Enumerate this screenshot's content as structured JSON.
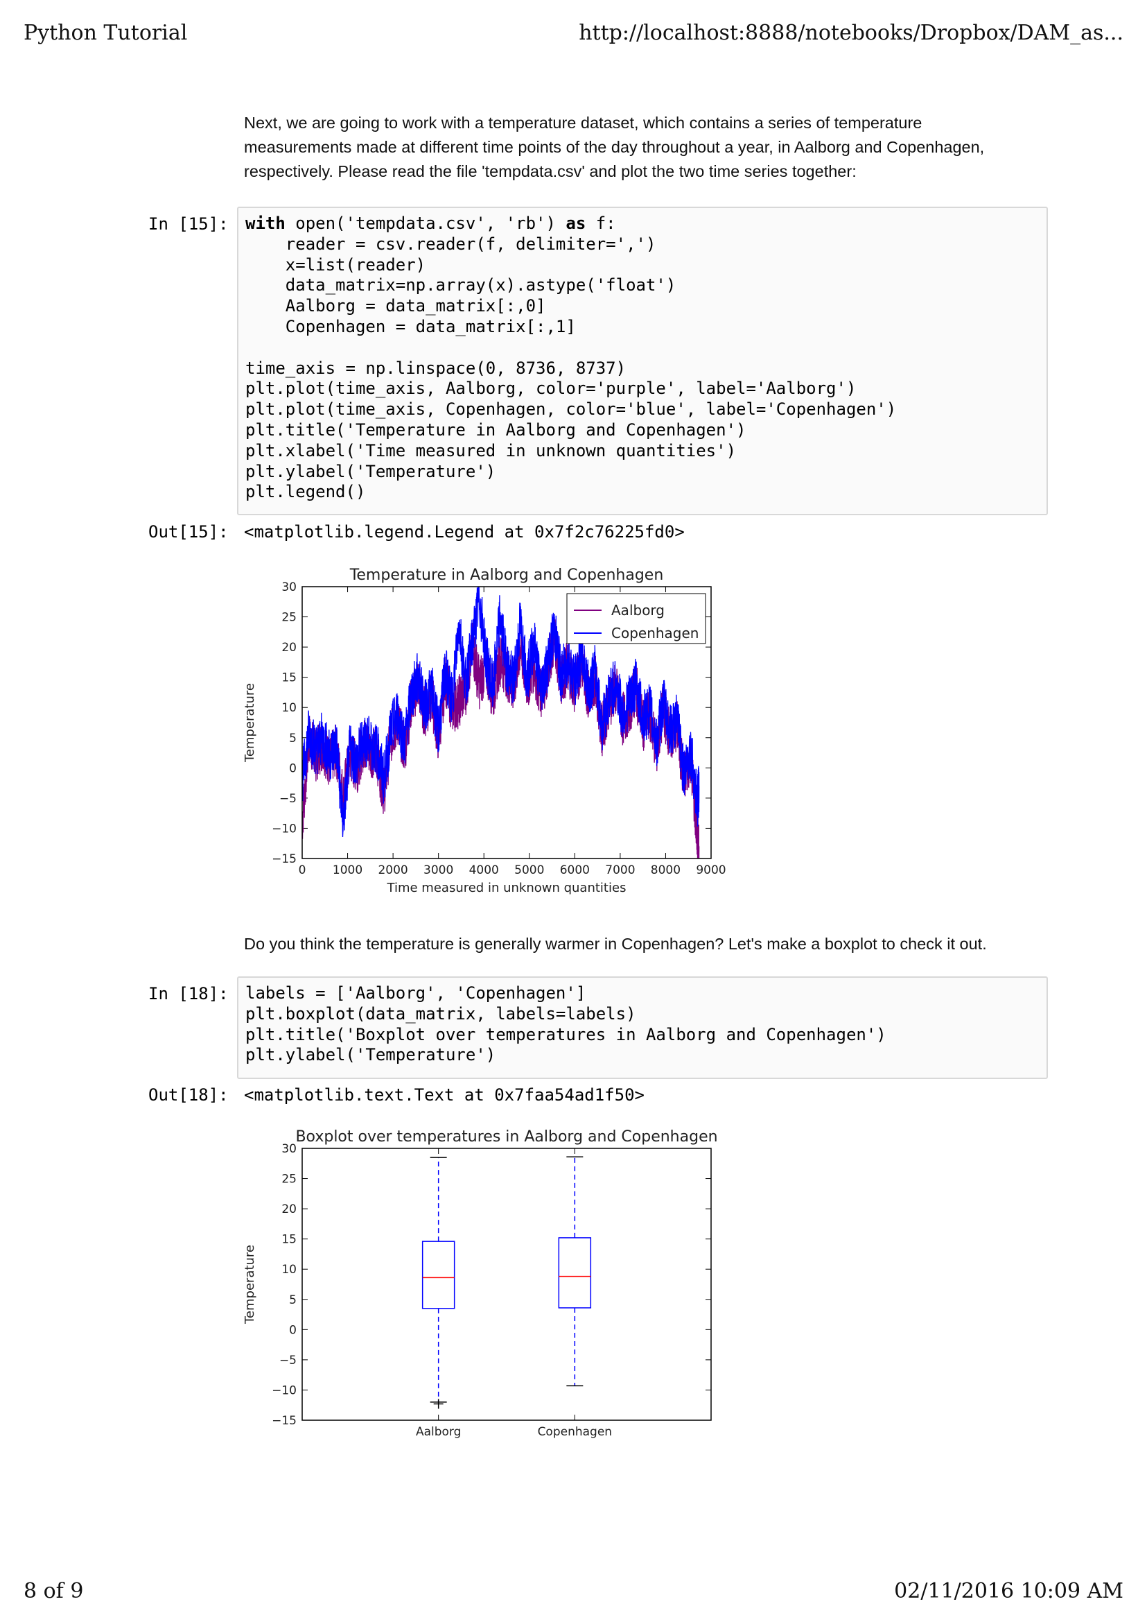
{
  "header": {
    "left": "Python Tutorial",
    "right": "http://localhost:8888/notebooks/Dropbox/DAM_as..."
  },
  "footer": {
    "left": "8 of 9",
    "right": "02/11/2016 10:09 AM"
  },
  "markdown1": [
    "Next, we are going to work with a temperature dataset, which contains a series of temperature",
    "measurements made at different time points of the day throughout a year, in Aalborg and Copenhagen,",
    "respectively. Please read the file 'tempdata.csv' and plot the two time series together:"
  ],
  "cell15": {
    "in_prompt": "In [15]:",
    "out_prompt": "Out[15]:",
    "output": "<matplotlib.legend.Legend at 0x7f2c76225fd0>",
    "lines": [
      "with open('tempdata.csv', 'rb') as f:",
      "    reader = csv.reader(f, delimiter=',')",
      "    x=list(reader)",
      "    data_matrix=np.array(x).astype('float')",
      "    Aalborg = data_matrix[:,0]",
      "    Copenhagen = data_matrix[:,1]",
      "",
      "time_axis = np.linspace(0, 8736, 8737)",
      "plt.plot(time_axis, Aalborg, color='purple', label='Aalborg')",
      "plt.plot(time_axis, Copenhagen, color='blue', label='Copenhagen')",
      "plt.title('Temperature in Aalborg and Copenhagen')",
      "plt.xlabel('Time measured in unknown quantities')",
      "plt.ylabel('Temperature')",
      "plt.legend()"
    ]
  },
  "markdown2": "Do you think the temperature is generally warmer in Copenhagen? Let's make a boxplot to check it out.",
  "cell18": {
    "in_prompt": "In [18]:",
    "out_prompt": "Out[18]:",
    "output": "<matplotlib.text.Text at 0x7faa54ad1f50>",
    "lines": [
      "labels = ['Aalborg', 'Copenhagen']",
      "plt.boxplot(data_matrix, labels=labels)",
      "plt.title('Boxplot over temperatures in Aalborg and Copenhagen')",
      "plt.ylabel('Temperature')"
    ]
  },
  "chart_data": [
    {
      "type": "line",
      "title": "Temperature in Aalborg and Copenhagen",
      "xlabel": "Time measured in unknown quantities",
      "ylabel": "Temperature",
      "xlim": [
        0,
        9000
      ],
      "ylim": [
        -15,
        30
      ],
      "xticks": [
        "0",
        "1000",
        "2000",
        "3000",
        "4000",
        "5000",
        "6000",
        "7000",
        "8000",
        "9000"
      ],
      "yticks": [
        "30",
        "25",
        "20",
        "15",
        "10",
        "5",
        "0",
        "−5",
        "−10",
        "−15"
      ],
      "legend_position": "top-right",
      "grid": false,
      "series": [
        {
          "name": "Aalborg",
          "color": "#800080",
          "x": [
            0,
            150,
            300,
            450,
            600,
            750,
            900,
            1050,
            1200,
            1350,
            1500,
            1650,
            1800,
            1950,
            2100,
            2250,
            2400,
            2550,
            2700,
            2850,
            3000,
            3150,
            3300,
            3450,
            3600,
            3750,
            3900,
            4050,
            4200,
            4350,
            4500,
            4650,
            4800,
            4950,
            5100,
            5250,
            5400,
            5550,
            5700,
            5850,
            6000,
            6150,
            6300,
            6450,
            6600,
            6750,
            6900,
            7050,
            7200,
            7350,
            7500,
            7650,
            7800,
            7950,
            8100,
            8250,
            8400,
            8550,
            8700,
            8736
          ],
          "y": [
            -9,
            5,
            2,
            4,
            1,
            3,
            -5,
            2,
            0,
            4,
            3,
            2,
            -4,
            5,
            8,
            3,
            11,
            14,
            9,
            12,
            5,
            15,
            10,
            11,
            13,
            20,
            14,
            17,
            12,
            18,
            16,
            13,
            20,
            14,
            17,
            12,
            16,
            22,
            14,
            17,
            13,
            18,
            12,
            15,
            6,
            11,
            13,
            8,
            10,
            13,
            7,
            9,
            3,
            10,
            5,
            7,
            -2,
            2,
            -12,
            -13
          ]
        },
        {
          "name": "Copenhagen",
          "color": "#0000ff",
          "x": [
            0,
            150,
            300,
            450,
            600,
            750,
            900,
            1050,
            1200,
            1350,
            1500,
            1650,
            1800,
            1950,
            2100,
            2250,
            2400,
            2550,
            2700,
            2850,
            3000,
            3150,
            3300,
            3450,
            3600,
            3750,
            3900,
            4050,
            4200,
            4350,
            4500,
            4650,
            4800,
            4950,
            5100,
            5250,
            5400,
            5550,
            5700,
            5850,
            6000,
            6150,
            6300,
            6450,
            6600,
            6750,
            6900,
            7050,
            7200,
            7350,
            7500,
            7650,
            7800,
            7950,
            8100,
            8250,
            8400,
            8550,
            8700,
            8736
          ],
          "y": [
            -2,
            6,
            3,
            5,
            2,
            4,
            -9,
            3,
            1,
            5,
            4,
            3,
            -2,
            6,
            9,
            4,
            12,
            15,
            10,
            13,
            6,
            16,
            11,
            24,
            14,
            21,
            28,
            18,
            13,
            25,
            17,
            14,
            24,
            15,
            21,
            13,
            17,
            23,
            15,
            18,
            14,
            19,
            13,
            16,
            7,
            12,
            14,
            9,
            11,
            14,
            8,
            10,
            4,
            11,
            6,
            8,
            -1,
            3,
            -6,
            -3
          ]
        }
      ]
    },
    {
      "type": "boxplot",
      "title": "Boxplot over temperatures in Aalborg and Copenhagen",
      "ylabel": "Temperature",
      "ylim": [
        -15,
        30
      ],
      "yticks": [
        "30",
        "25",
        "20",
        "15",
        "10",
        "5",
        "0",
        "−5",
        "−10",
        "−15"
      ],
      "categories": [
        "Aalborg",
        "Copenhagen"
      ],
      "boxes": [
        {
          "name": "Aalborg",
          "whisker_low": -12,
          "q1": 3.5,
          "median": 8.6,
          "q3": 14.6,
          "whisker_high": 28.5,
          "outliers": [
            -12.3
          ]
        },
        {
          "name": "Copenhagen",
          "whisker_low": -9.3,
          "q1": 3.6,
          "median": 8.8,
          "q3": 15.2,
          "whisker_high": 28.6,
          "outliers": []
        }
      ],
      "colors": {
        "box": "#0000ff",
        "median": "#ff0000",
        "whisker": "#0000ff",
        "cap": "#000000",
        "flier": "#000000"
      }
    }
  ]
}
